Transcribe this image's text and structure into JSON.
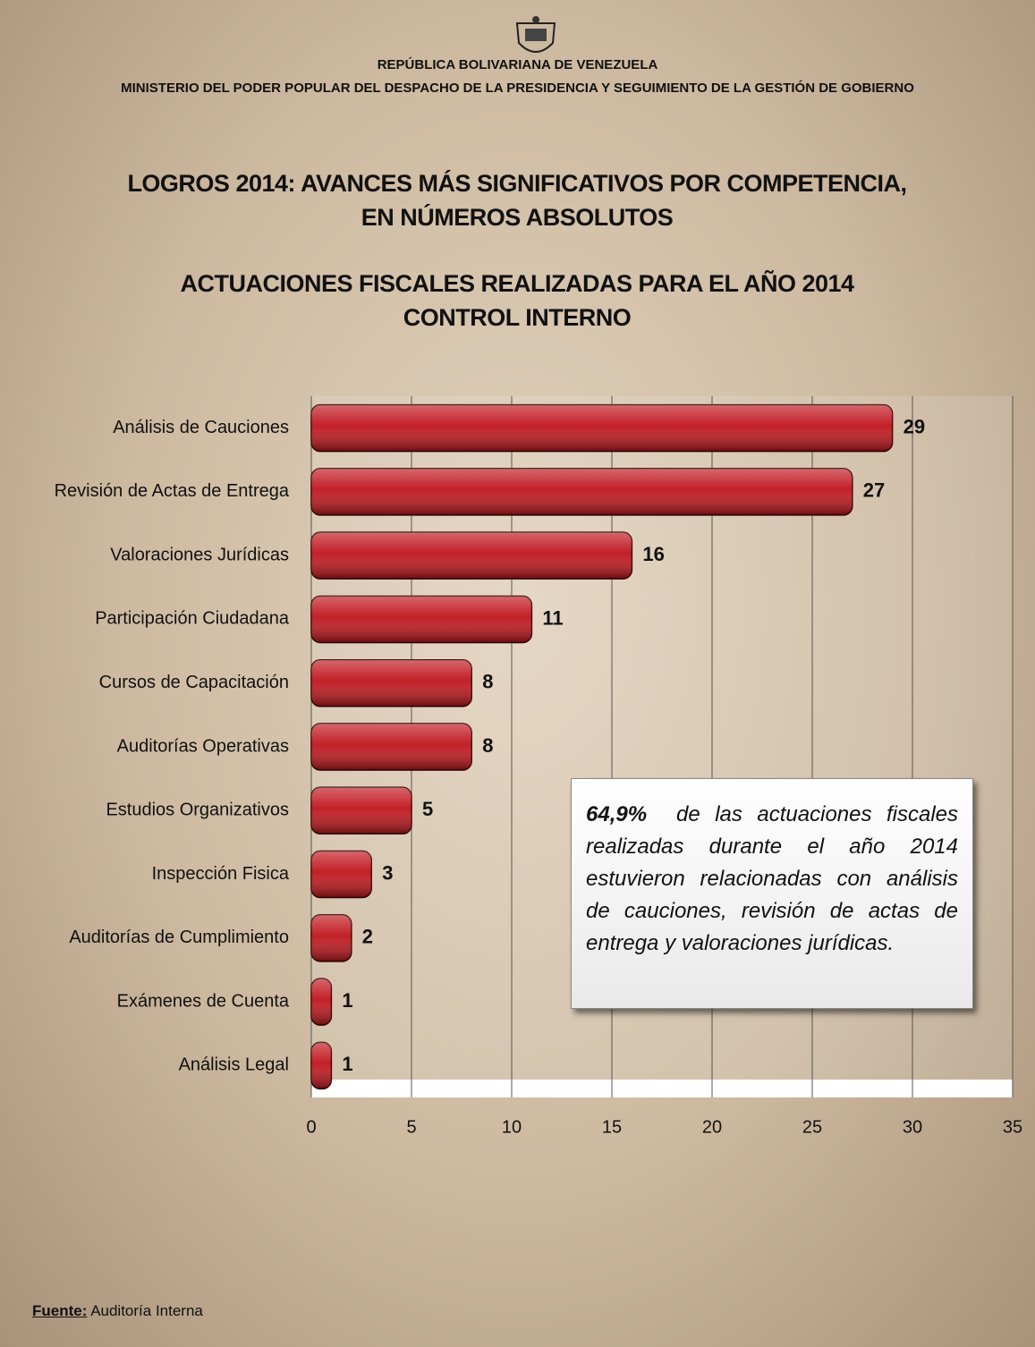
{
  "header": {
    "line1": "REPÚBLICA BOLIVARIANA DE VENEZUELA",
    "line2": "MINISTERIO DEL PODER POPULAR DEL DESPACHO DE LA PRESIDENCIA Y SEGUIMIENTO DE LA GESTIÓN DE GOBIERNO"
  },
  "chart_data": {
    "type": "bar",
    "orientation": "horizontal",
    "title": "LOGROS 2014: AVANCES MÁS SIGNIFICATIVOS POR COMPETENCIA, EN NÚMEROS ABSOLUTOS",
    "subtitle": [
      "ACTUACIONES FISCALES REALIZADAS PARA EL  AÑO 2014",
      "CONTROL INTERNO"
    ],
    "categories": [
      "Análisis de Cauciones",
      "Revisión de Actas de Entrega",
      "Valoraciones Jurídicas",
      "Participación Ciudadana",
      "Cursos de Capacitación",
      "Auditorías Operativas",
      "Estudios Organizativos",
      "Inspección Fisica",
      "Auditorías de Cumplimiento",
      "Exámenes de Cuenta",
      "Análisis Legal"
    ],
    "values": [
      29,
      27,
      16,
      11,
      8,
      8,
      5,
      3,
      2,
      1,
      1
    ],
    "color": "#c0141b",
    "xlim": [
      0,
      35
    ],
    "xticks": [
      0,
      5,
      10,
      15,
      20,
      25,
      30,
      35
    ],
    "grid": true,
    "annotation": {
      "highlight": "64,9%",
      "text": "de las actuaciones fiscales realizadas durante el año 2014 estuvieron relacionadas con análisis de cauciones, revisión de actas de entrega y valoraciones jurídicas."
    }
  },
  "source": {
    "label": "Fuente:",
    "text": "Auditoría Interna"
  }
}
